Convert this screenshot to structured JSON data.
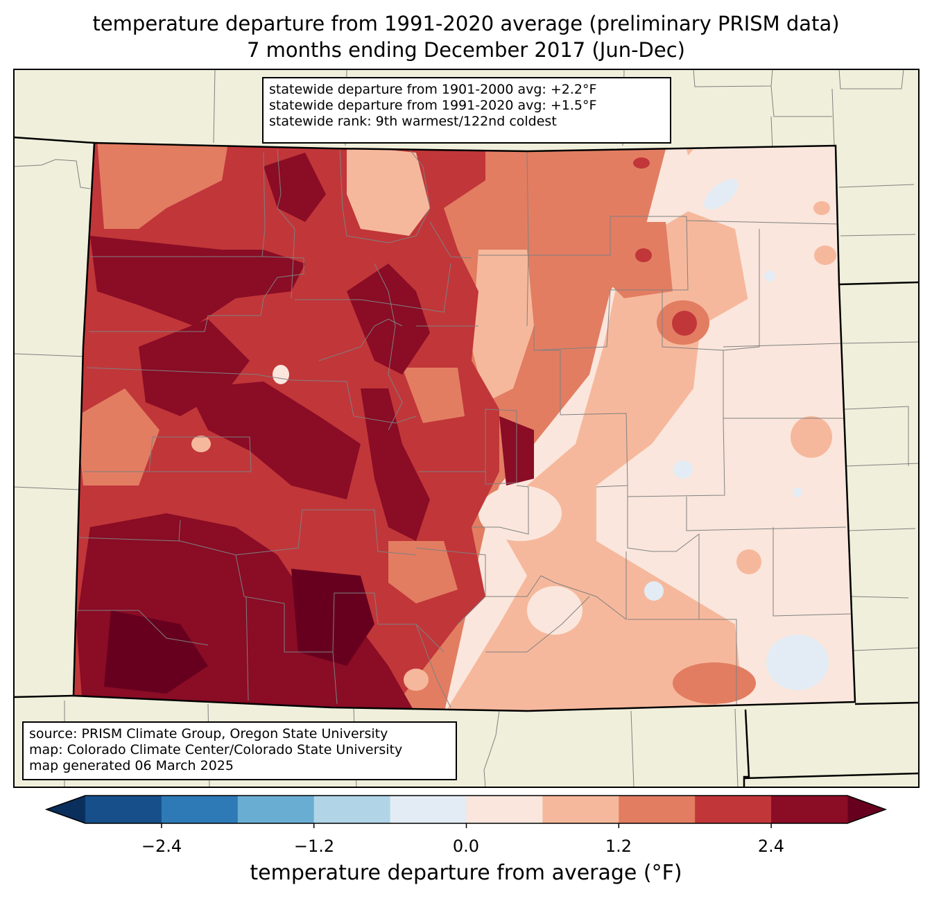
{
  "title": {
    "line1": "temperature departure from 1991-2020 average (preliminary PRISM data)",
    "line2": "7 months ending December 2017 (Jun-Dec)"
  },
  "stats_box": {
    "line1": "statewide departure from 1901-2000 avg: +2.2°F",
    "line2": "statewide departure from 1991-2020 avg: +1.5°F",
    "line3": "statewide rank: 9th warmest/122nd coldest"
  },
  "source_box": {
    "line1": "source: PRISM Climate Group, Oregon State University",
    "line2": "map: Colorado Climate Center/Colorado State University",
    "line3": "map generated 06 March 2025"
  },
  "colorbar": {
    "label": "temperature departure from average (°F)",
    "ticks": [
      "−2.4",
      "−1.2",
      "0.0",
      "1.2",
      "2.4"
    ],
    "levels": [
      -3.0,
      -2.4,
      -1.8,
      -1.2,
      -0.6,
      0.0,
      0.6,
      1.2,
      1.8,
      2.4,
      3.0
    ],
    "colors": [
      "#164f8a",
      "#2e7ab6",
      "#6aadd2",
      "#b1d5e7",
      "#e3ecf4",
      "#fae6dc",
      "#f6b89c",
      "#e27d62",
      "#c13639",
      "#8a0c25"
    ],
    "under_color": "#0b2f5c",
    "over_color": "#67001f"
  },
  "map_colors": {
    "land": "#efefdb",
    "county_line": "#808080",
    "state_line": "#000000"
  },
  "chart_data": {
    "type": "heatmap",
    "title": "temperature departure from 1991-2020 average (preliminary PRISM data)",
    "subtitle": "7 months ending December 2017 (Jun-Dec)",
    "region": "Colorado",
    "variable": "temperature departure from average (°F)",
    "range": [
      -3.0,
      3.0
    ],
    "pattern": "largest warm departures (+1.8 to over +2.4°F) across western and central mountains; smaller departures (0 to +1.2°F) on the eastern plains; isolated slightly negative spots in the east"
  }
}
